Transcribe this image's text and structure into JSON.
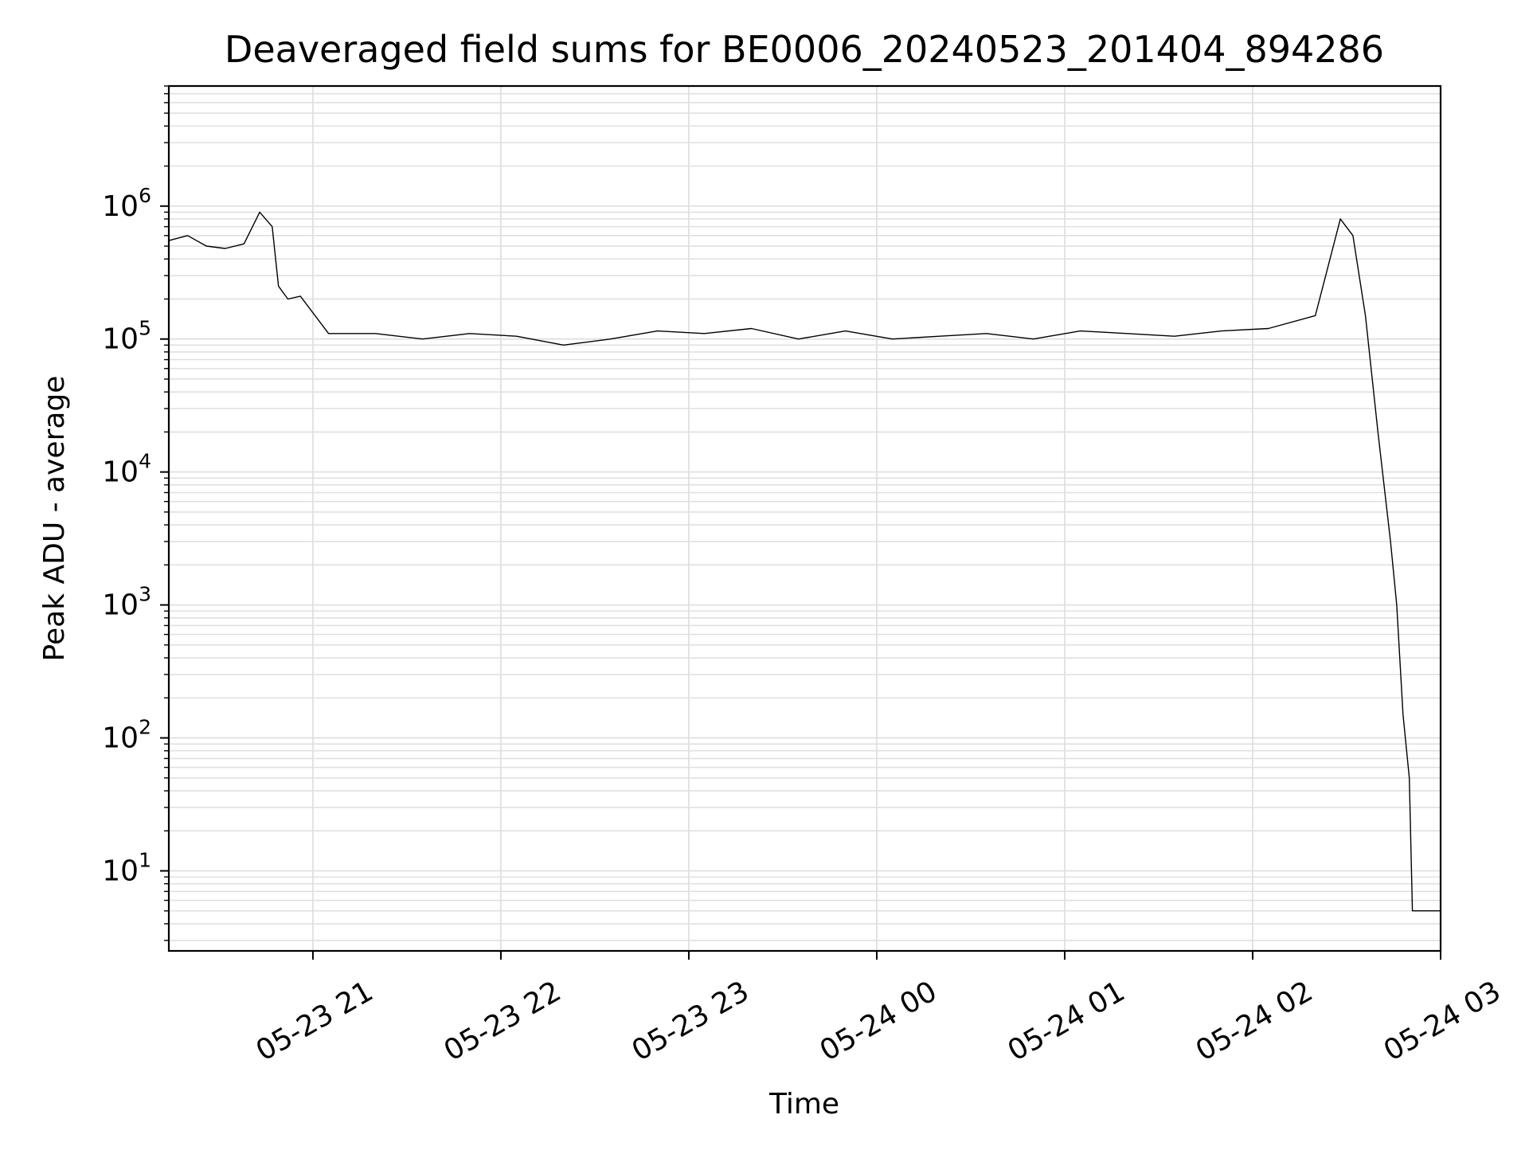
{
  "chart_data": {
    "type": "line",
    "title": "Deaveraged field sums for BE0006_20240523_201404_894286",
    "xlabel": "Time",
    "ylabel": "Peak ADU - average",
    "yscale": "log",
    "ylim": [
      2.5,
      8000000
    ],
    "xlim": [
      "2024-05-23 20:14",
      "2024-05-24 03:00"
    ],
    "grid": true,
    "line_color": "#000000",
    "grid_color": "#e0e0e0",
    "x_ticks": [
      {
        "value": "2024-05-23 21:00",
        "label": "05-23 21"
      },
      {
        "value": "2024-05-23 22:00",
        "label": "05-23 22"
      },
      {
        "value": "2024-05-23 23:00",
        "label": "05-23 23"
      },
      {
        "value": "2024-05-24 00:00",
        "label": "05-24 00"
      },
      {
        "value": "2024-05-24 01:00",
        "label": "05-24 01"
      },
      {
        "value": "2024-05-24 02:00",
        "label": "05-24 02"
      },
      {
        "value": "2024-05-24 03:00",
        "label": "05-24 03"
      }
    ],
    "y_ticks": [
      {
        "value": 10,
        "base": "10",
        "exp": "1"
      },
      {
        "value": 100,
        "base": "10",
        "exp": "2"
      },
      {
        "value": 1000,
        "base": "10",
        "exp": "3"
      },
      {
        "value": 10000,
        "base": "10",
        "exp": "4"
      },
      {
        "value": 100000,
        "base": "10",
        "exp": "5"
      },
      {
        "value": 1000000,
        "base": "10",
        "exp": "6"
      }
    ],
    "series": [
      {
        "x": [
          "2024-05-23 20:14",
          "2024-05-23 20:20",
          "2024-05-23 20:26",
          "2024-05-23 20:32",
          "2024-05-23 20:38",
          "2024-05-23 20:43",
          "2024-05-23 20:47",
          "2024-05-23 20:49",
          "2024-05-23 20:52",
          "2024-05-23 20:56",
          "2024-05-23 21:05",
          "2024-05-23 21:20",
          "2024-05-23 21:35",
          "2024-05-23 21:50",
          "2024-05-23 22:05",
          "2024-05-23 22:20",
          "2024-05-23 22:35",
          "2024-05-23 22:50",
          "2024-05-23 23:05",
          "2024-05-23 23:20",
          "2024-05-23 23:35",
          "2024-05-23 23:50",
          "2024-05-24 00:05",
          "2024-05-24 00:20",
          "2024-05-24 00:35",
          "2024-05-24 00:50",
          "2024-05-24 01:05",
          "2024-05-24 01:20",
          "2024-05-24 01:35",
          "2024-05-24 01:50",
          "2024-05-24 02:05",
          "2024-05-24 02:20",
          "2024-05-24 02:28",
          "2024-05-24 02:32",
          "2024-05-24 02:36",
          "2024-05-24 02:40",
          "2024-05-24 02:44",
          "2024-05-24 02:46",
          "2024-05-24 02:48",
          "2024-05-24 02:50",
          "2024-05-24 02:51",
          "2024-05-24 02:53",
          "2024-05-24 03:00"
        ],
        "y": [
          550000,
          600000,
          500000,
          480000,
          520000,
          900000,
          700000,
          250000,
          200000,
          210000,
          110000,
          110000,
          100000,
          110000,
          105000,
          90000,
          100000,
          115000,
          110000,
          120000,
          100000,
          115000,
          100000,
          105000,
          110000,
          100000,
          115000,
          110000,
          105000,
          115000,
          120000,
          150000,
          800000,
          600000,
          150000,
          20000,
          3000,
          1000,
          150,
          50,
          5,
          5,
          5
        ]
      }
    ]
  }
}
